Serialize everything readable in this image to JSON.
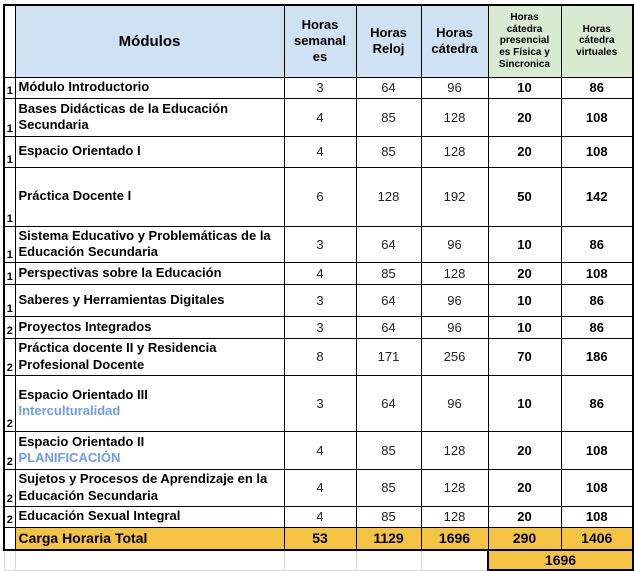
{
  "table": {
    "headers": {
      "row_number": "",
      "modules": "Módulos",
      "weekly_hours": "Horas\nsemanal\nes",
      "clock_hours": "Horas\nReloj",
      "catedra_hours": "Horas\ncátedra",
      "catedra_presencial": "Horas\ncátedra\npresencial\nes Física y\nSincronica",
      "catedra_virtual": "Horas\ncátedra\nvirtuales"
    },
    "rows": [
      {
        "year": "1",
        "name": "Módulo Introductorio",
        "subtitle": "",
        "weekly": "3",
        "clock": "64",
        "catedra": "96",
        "presencial": "10",
        "virtual": "86"
      },
      {
        "year": "1",
        "name": "Bases Didácticas de la Educación Secundaria",
        "subtitle": "",
        "weekly": "4",
        "clock": "85",
        "catedra": "128",
        "presencial": "20",
        "virtual": "108"
      },
      {
        "year": "1",
        "name": "Espacio Orientado I",
        "subtitle": "",
        "weekly": "4",
        "clock": "85",
        "catedra": "128",
        "presencial": "20",
        "virtual": "108"
      },
      {
        "year": "1",
        "name": "Práctica Docente I",
        "subtitle": "",
        "weekly": "6",
        "clock": "128",
        "catedra": "192",
        "presencial": "50",
        "virtual": "142"
      },
      {
        "year": "1",
        "name": "Sistema Educativo y Problemáticas de la Educación Secundaria",
        "subtitle": "",
        "weekly": "3",
        "clock": "64",
        "catedra": "96",
        "presencial": "10",
        "virtual": "86"
      },
      {
        "year": "1",
        "name": "Perspectivas sobre la Educación",
        "subtitle": "",
        "weekly": "4",
        "clock": "85",
        "catedra": "128",
        "presencial": "20",
        "virtual": "108"
      },
      {
        "year": "1",
        "name": "Saberes y Herramientas Digitales",
        "subtitle": "",
        "weekly": "3",
        "clock": "64",
        "catedra": "96",
        "presencial": "10",
        "virtual": "86"
      },
      {
        "year": "2",
        "name": "Proyectos Integrados",
        "subtitle": "",
        "weekly": "3",
        "clock": "64",
        "catedra": "96",
        "presencial": "10",
        "virtual": "86"
      },
      {
        "year": "2",
        "name": "Práctica docente II y Residencia Profesional Docente",
        "subtitle": "",
        "weekly": "8",
        "clock": "171",
        "catedra": "256",
        "presencial": "70",
        "virtual": "186"
      },
      {
        "year": "2",
        "name": "Espacio Orientado III",
        "subtitle": "Interculturalidad",
        "weekly": "3",
        "clock": "64",
        "catedra": "96",
        "presencial": "10",
        "virtual": "86"
      },
      {
        "year": "2",
        "name": "Espacio Orientado II",
        "subtitle": "PLANIFICACIÓN",
        "weekly": "4",
        "clock": "85",
        "catedra": "128",
        "presencial": "20",
        "virtual": "108"
      },
      {
        "year": "2",
        "name": "Sujetos y Procesos de Aprendizaje en la Educación Secundaria",
        "subtitle": "",
        "weekly": "4",
        "clock": "85",
        "catedra": "128",
        "presencial": "20",
        "virtual": "108"
      },
      {
        "year": "2",
        "name": "Educación Sexual Integral",
        "subtitle": "",
        "weekly": "4",
        "clock": "85",
        "catedra": "128",
        "presencial": "20",
        "virtual": "108"
      }
    ],
    "total_row": {
      "label": "Carga Horaria Total",
      "weekly": "53",
      "clock": "1129",
      "catedra": "1696",
      "presencial": "290",
      "virtual": "1406"
    },
    "grand_total": "1696"
  },
  "colors": {
    "header_blue": "#cfe2f3",
    "header_green": "#d9ead3",
    "total_yellow": "#f5c342",
    "accent_blue": "#6d9eeb",
    "border_black": "#000000",
    "gridline_gray": "#d9d9d9"
  }
}
